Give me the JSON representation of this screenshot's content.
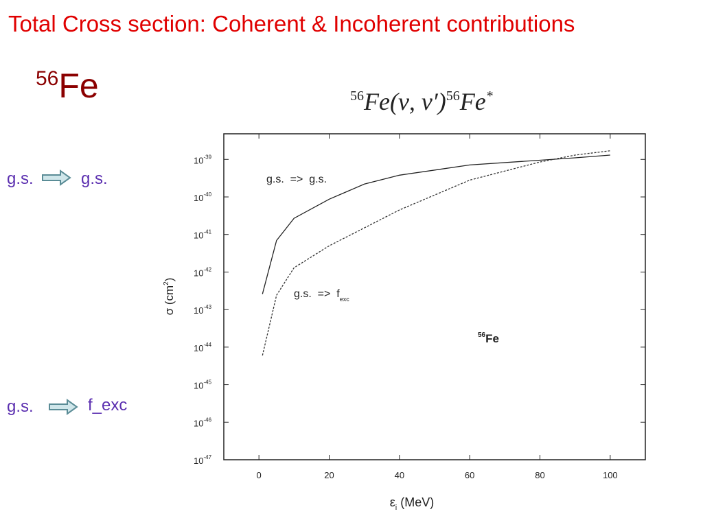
{
  "slide": {
    "title": "Total Cross section: Coherent & Incoherent contributions",
    "nucleus": {
      "sup": "56",
      "text": "Fe"
    },
    "reaction": [
      "56",
      "Fe(ν, ν′)",
      "56",
      "Fe",
      "*"
    ],
    "labels": [
      {
        "from": "g.s.",
        "to": "g.s."
      },
      {
        "from": "g.s.",
        "to": "f_exc"
      }
    ]
  },
  "chart_data": {
    "type": "line",
    "x_label": {
      "text": "ε",
      "sub": "i",
      "rest": " (MeV)"
    },
    "y_label": {
      "text": "σ (cm",
      "sup": "2",
      "rest": ")"
    },
    "annotation": {
      "sup": "56",
      "text": "Fe"
    },
    "x": [
      1,
      5,
      10,
      20,
      30,
      40,
      60,
      80,
      90,
      100
    ],
    "series": [
      {
        "name": "g.s.  =>  g.s.",
        "color": "#222222",
        "dash": false,
        "values": [
          2.6e-43,
          6.9e-42,
          2.7e-41,
          8.7e-41,
          2.2e-40,
          3.8e-40,
          7.1e-40,
          9.5e-40,
          1.1e-39,
          1.3e-39
        ]
      },
      {
        "name": "g.s.  =>  f",
        "name_sub": "exc",
        "color": "#333333",
        "dash": true,
        "values": [
          6e-45,
          2.4e-43,
          1.3e-42,
          5e-42,
          1.5e-41,
          4.5e-41,
          2.8e-40,
          8.5e-40,
          1.3e-39,
          1.7e-39
        ]
      }
    ],
    "xlim": [
      -10,
      110
    ],
    "xticks": [
      0,
      20,
      40,
      60,
      80,
      100
    ],
    "ylim": [
      1e-47,
      4.8e-39
    ],
    "log_y": true,
    "yticks": [
      {
        "value": 1e-39,
        "label": "10",
        "sup": "-39"
      },
      {
        "value": 1e-40,
        "label": "10",
        "sup": "-40"
      },
      {
        "value": 1e-41,
        "label": "10",
        "sup": "-41"
      },
      {
        "value": 1e-42,
        "label": "10",
        "sup": "-42"
      },
      {
        "value": 1e-43,
        "label": "10",
        "sup": "-43"
      },
      {
        "value": 1e-44,
        "label": "10",
        "sup": "-44"
      },
      {
        "value": 1e-45,
        "label": "10",
        "sup": "-45"
      },
      {
        "value": 1e-46,
        "label": "10",
        "sup": "-46"
      },
      {
        "value": 1e-47,
        "label": "10",
        "sup": "-47"
      }
    ]
  }
}
